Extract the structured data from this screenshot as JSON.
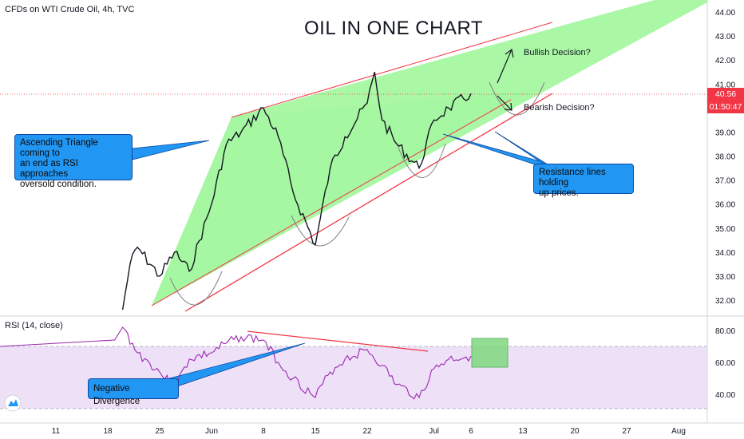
{
  "header": {
    "symbol_label": "CFDs on WTI Crude Oil, 4h, TVC",
    "title": "OIL IN ONE CHART"
  },
  "price_axis": {
    "current_price": "40.56",
    "countdown": "01:50:47"
  },
  "annotations": {
    "bullish": "Bullish Decision?",
    "bearish": "Bearish Decision?",
    "triangle_note": "Ascending Triangle coming to\nan end as RSI approaches\noversold condition.",
    "resistance_note": "Resistance lines holding\nup prices.",
    "divergence_note": "Negative Divergence"
  },
  "colors": {
    "price_line": "#131722",
    "rsi_line": "#9c27b0",
    "trend_line": "#f23645",
    "triangle_fill": "#a5f7a0",
    "rsi_band": "#ede0f7",
    "callout": "#2196f3",
    "current_price_tag": "#f23645"
  },
  "chart_data": [
    {
      "type": "line",
      "title": "CFDs on WTI Crude Oil, 4h, TVC",
      "x_tick_labels": [
        "11",
        "18",
        "25",
        "Jun",
        "8",
        "15",
        "22",
        "Jul",
        "6",
        "13",
        "20",
        "27",
        "Aug"
      ],
      "y_tick_labels": [
        "32.00",
        "33.00",
        "34.00",
        "35.00",
        "36.00",
        "37.00",
        "38.00",
        "39.00",
        "40.00",
        "41.00",
        "42.00",
        "43.00",
        "44.00"
      ],
      "ylim": [
        31.5,
        44.3
      ],
      "grid": false,
      "series": [
        {
          "x": [
            "May 20",
            "May 21",
            "May 22",
            "May 25",
            "May 27",
            "May 29",
            "Jun 1",
            "Jun 3",
            "Jun 5",
            "Jun 8",
            "Jun 10",
            "Jun 12",
            "Jun 15",
            "Jun 17",
            "Jun 19",
            "Jun 22",
            "Jun 23",
            "Jun 24",
            "Jun 26",
            "Jun 29",
            "Jul 1",
            "Jul 3",
            "Jul 6"
          ],
          "values": [
            31.6,
            33.5,
            34.2,
            33.0,
            34.0,
            33.2,
            36.0,
            38.5,
            39.0,
            40.0,
            38.8,
            36.5,
            34.3,
            37.5,
            38.8,
            40.2,
            41.5,
            39.5,
            38.5,
            37.5,
            39.5,
            40.0,
            40.6
          ]
        }
      ]
    },
    {
      "type": "line",
      "title": "RSI (14, close)",
      "y_tick_labels": [
        "40.00",
        "60.00",
        "80.00"
      ],
      "ylim": [
        28,
        90
      ],
      "bands": [
        30,
        70
      ],
      "series": [
        {
          "x": [
            "May 20",
            "May 22",
            "May 25",
            "May 27",
            "May 29",
            "Jun 1",
            "Jun 3",
            "Jun 5",
            "Jun 8",
            "Jun 10",
            "Jun 12",
            "Jun 15",
            "Jun 17",
            "Jun 19",
            "Jun 22",
            "Jun 24",
            "Jun 26",
            "Jun 29",
            "Jul 1",
            "Jul 3",
            "Jul 6"
          ],
          "values": [
            82,
            66,
            54,
            44,
            62,
            66,
            72,
            76,
            74,
            60,
            50,
            38,
            54,
            62,
            68,
            58,
            46,
            38,
            56,
            62,
            64
          ]
        }
      ]
    }
  ]
}
